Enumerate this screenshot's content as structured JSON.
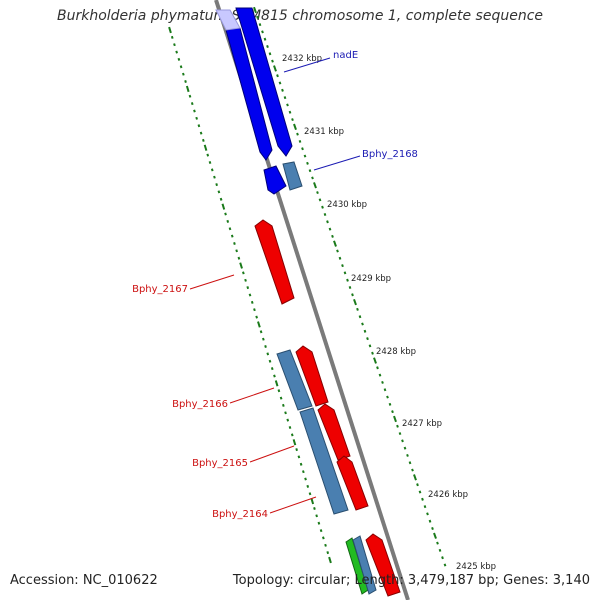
{
  "title": "Burkholderia phymatum STM815 chromosome 1, complete sequence",
  "footer": {
    "accession": "Accession: NC_010622",
    "topology": "Topology: circular; Length: 3,479,187 bp; Genes: 3,140"
  },
  "kbp_ticks": [
    "2432 kbp",
    "2431 kbp",
    "2430 kbp",
    "2429 kbp",
    "2428 kbp",
    "2427 kbp",
    "2426 kbp",
    "2425 kbp"
  ],
  "gene_labels": [
    {
      "label": "nadE",
      "strand": "forward"
    },
    {
      "label": "Bphy_2168",
      "strand": "forward"
    },
    {
      "label": "Bphy_2167",
      "strand": "reverse"
    },
    {
      "label": "Bphy_2166",
      "strand": "reverse"
    },
    {
      "label": "Bphy_2165",
      "strand": "reverse"
    },
    {
      "label": "Bphy_2164",
      "strand": "reverse"
    }
  ],
  "colors": {
    "forward_label": "#1b1bb3",
    "reverse_label": "#cc1111",
    "forward_gene": "#0000ee",
    "reverse_gene": "#ee0000",
    "rna_gene": "#4a7fb0",
    "other_gene": "#22bb22",
    "backbone": "#7a7a7a",
    "tick": "#1a7a1a"
  }
}
